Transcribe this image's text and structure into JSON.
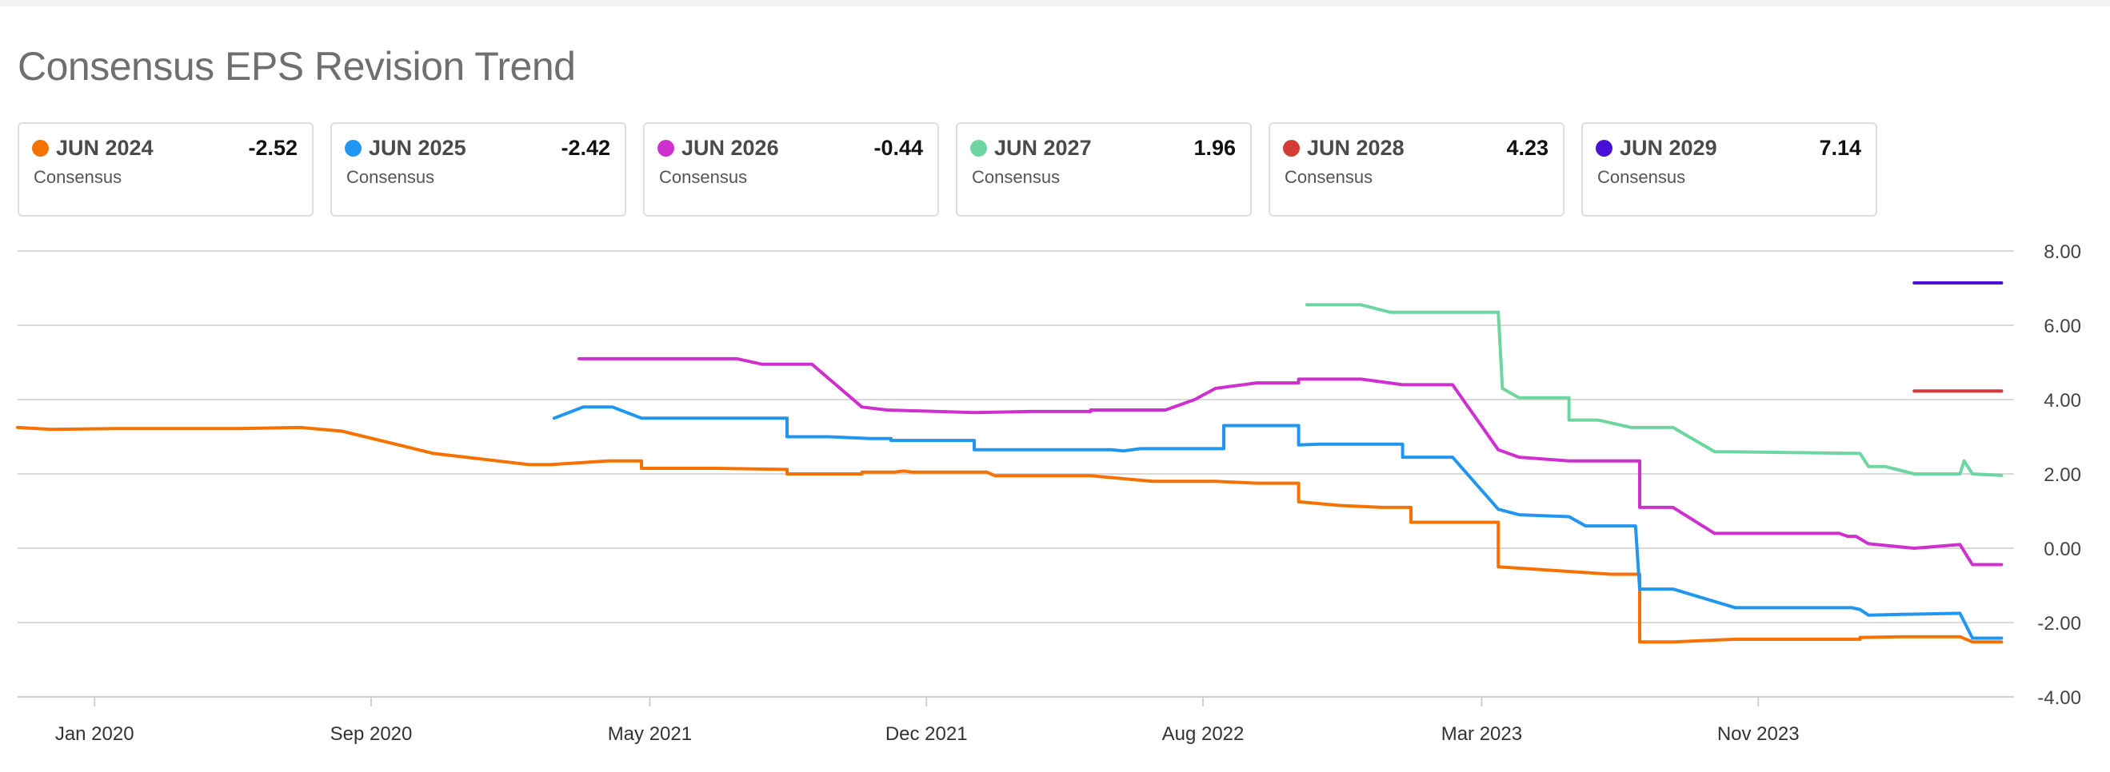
{
  "header": {
    "title": "Consensus EPS Revision Trend"
  },
  "cards": [
    {
      "name": "JUN 2024",
      "value": "-2.52",
      "label": "Consensus",
      "color": "#f57200"
    },
    {
      "name": "JUN 2025",
      "value": "-2.42",
      "label": "Consensus",
      "color": "#2196f0"
    },
    {
      "name": "JUN 2026",
      "value": "-0.44",
      "label": "Consensus",
      "color": "#cf2fcf"
    },
    {
      "name": "JUN 2027",
      "value": "1.96",
      "label": "Consensus",
      "color": "#6dd6a0"
    },
    {
      "name": "JUN 2028",
      "value": "4.23",
      "label": "Consensus",
      "color": "#d33b34"
    },
    {
      "name": "JUN 2029",
      "value": "7.14",
      "label": "Consensus",
      "color": "#4a10d8"
    }
  ],
  "chart_data": {
    "type": "line",
    "title": "Consensus EPS Revision Trend",
    "xlabel": "",
    "ylabel": "",
    "x_unit": "years (decimal)",
    "xlim": [
      2019.77,
      2024.57
    ],
    "ylim": [
      -4,
      8
    ],
    "yticks": [
      8,
      6,
      4,
      2,
      0,
      -2,
      -4
    ],
    "ytick_labels": [
      "8.00",
      "6.00",
      "4.00",
      "2.00",
      "0.00",
      "-2.00",
      "-4.00"
    ],
    "xticks": [
      {
        "value": 2019.955,
        "label": "Jan 2020"
      },
      {
        "value": 2020.62,
        "label": "Sep 2020"
      },
      {
        "value": 2021.29,
        "label": "May 2021"
      },
      {
        "value": 2021.955,
        "label": "Dec 2021"
      },
      {
        "value": 2022.62,
        "label": "Aug 2022"
      },
      {
        "value": 2023.29,
        "label": "Mar 2023"
      },
      {
        "value": 2023.955,
        "label": "Nov 2023"
      }
    ],
    "grid": true,
    "series": [
      {
        "name": "JUN 2024",
        "color": "#f57200",
        "points": [
          [
            2019.77,
            3.25
          ],
          [
            2019.85,
            3.2
          ],
          [
            2020.0,
            3.22
          ],
          [
            2020.3,
            3.22
          ],
          [
            2020.45,
            3.25
          ],
          [
            2020.55,
            3.15
          ],
          [
            2020.77,
            2.55
          ],
          [
            2021.0,
            2.25
          ],
          [
            2021.05,
            2.25
          ],
          [
            2021.19,
            2.35
          ],
          [
            2021.27,
            2.35
          ],
          [
            2021.27,
            2.15
          ],
          [
            2021.45,
            2.15
          ],
          [
            2021.62,
            2.12
          ],
          [
            2021.62,
            2.0
          ],
          [
            2021.8,
            2.0
          ],
          [
            2021.8,
            2.05
          ],
          [
            2021.88,
            2.05
          ],
          [
            2021.9,
            2.08
          ],
          [
            2021.92,
            2.05
          ],
          [
            2022.1,
            2.05
          ],
          [
            2022.12,
            1.95
          ],
          [
            2022.35,
            1.95
          ],
          [
            2022.4,
            1.9
          ],
          [
            2022.45,
            1.85
          ],
          [
            2022.5,
            1.8
          ],
          [
            2022.62,
            1.8
          ],
          [
            2022.65,
            1.8
          ],
          [
            2022.75,
            1.75
          ],
          [
            2022.85,
            1.75
          ],
          [
            2022.85,
            1.25
          ],
          [
            2022.95,
            1.15
          ],
          [
            2023.05,
            1.1
          ],
          [
            2023.12,
            1.1
          ],
          [
            2023.12,
            0.7
          ],
          [
            2023.33,
            0.7
          ],
          [
            2023.33,
            -0.5
          ],
          [
            2023.4,
            -0.55
          ],
          [
            2023.6,
            -0.7
          ],
          [
            2023.67,
            -0.7
          ],
          [
            2023.67,
            -2.52
          ],
          [
            2023.75,
            -2.52
          ],
          [
            2023.9,
            -2.45
          ],
          [
            2024.2,
            -2.45
          ],
          [
            2024.2,
            -2.4
          ],
          [
            2024.3,
            -2.38
          ],
          [
            2024.44,
            -2.38
          ],
          [
            2024.47,
            -2.52
          ],
          [
            2024.54,
            -2.52
          ]
        ]
      },
      {
        "name": "JUN 2025",
        "color": "#2196f0",
        "points": [
          [
            2021.06,
            3.5
          ],
          [
            2021.13,
            3.8
          ],
          [
            2021.2,
            3.8
          ],
          [
            2021.27,
            3.5
          ],
          [
            2021.62,
            3.5
          ],
          [
            2021.62,
            3.0
          ],
          [
            2021.72,
            3.0
          ],
          [
            2021.82,
            2.95
          ],
          [
            2021.87,
            2.95
          ],
          [
            2021.87,
            2.9
          ],
          [
            2022.07,
            2.9
          ],
          [
            2022.07,
            2.65
          ],
          [
            2022.4,
            2.65
          ],
          [
            2022.43,
            2.62
          ],
          [
            2022.47,
            2.68
          ],
          [
            2022.67,
            2.68
          ],
          [
            2022.67,
            3.3
          ],
          [
            2022.85,
            3.3
          ],
          [
            2022.85,
            2.78
          ],
          [
            2022.9,
            2.8
          ],
          [
            2023.1,
            2.8
          ],
          [
            2023.1,
            2.45
          ],
          [
            2023.22,
            2.45
          ],
          [
            2023.33,
            1.05
          ],
          [
            2023.38,
            0.9
          ],
          [
            2023.5,
            0.85
          ],
          [
            2023.54,
            0.6
          ],
          [
            2023.66,
            0.6
          ],
          [
            2023.67,
            -1.1
          ],
          [
            2023.75,
            -1.1
          ],
          [
            2023.9,
            -1.6
          ],
          [
            2024.18,
            -1.6
          ],
          [
            2024.2,
            -1.65
          ],
          [
            2024.22,
            -1.8
          ],
          [
            2024.3,
            -1.78
          ],
          [
            2024.44,
            -1.75
          ],
          [
            2024.47,
            -2.42
          ],
          [
            2024.54,
            -2.42
          ]
        ]
      },
      {
        "name": "JUN 2026",
        "color": "#cf2fcf",
        "points": [
          [
            2021.12,
            5.1
          ],
          [
            2021.5,
            5.1
          ],
          [
            2021.56,
            4.95
          ],
          [
            2021.68,
            4.95
          ],
          [
            2021.8,
            3.8
          ],
          [
            2021.86,
            3.72
          ],
          [
            2022.07,
            3.65
          ],
          [
            2022.2,
            3.68
          ],
          [
            2022.35,
            3.68
          ],
          [
            2022.35,
            3.72
          ],
          [
            2022.53,
            3.72
          ],
          [
            2022.6,
            4.0
          ],
          [
            2022.65,
            4.3
          ],
          [
            2022.75,
            4.45
          ],
          [
            2022.85,
            4.45
          ],
          [
            2022.85,
            4.55
          ],
          [
            2023.0,
            4.55
          ],
          [
            2023.1,
            4.4
          ],
          [
            2023.22,
            4.4
          ],
          [
            2023.33,
            2.65
          ],
          [
            2023.38,
            2.45
          ],
          [
            2023.5,
            2.35
          ],
          [
            2023.67,
            2.35
          ],
          [
            2023.67,
            1.1
          ],
          [
            2023.75,
            1.1
          ],
          [
            2023.85,
            0.4
          ],
          [
            2024.15,
            0.4
          ],
          [
            2024.17,
            0.32
          ],
          [
            2024.19,
            0.32
          ],
          [
            2024.22,
            0.12
          ],
          [
            2024.33,
            0.0
          ],
          [
            2024.44,
            0.1
          ],
          [
            2024.47,
            -0.44
          ],
          [
            2024.54,
            -0.44
          ]
        ]
      },
      {
        "name": "JUN 2027",
        "color": "#6dd6a0",
        "points": [
          [
            2022.87,
            6.55
          ],
          [
            2023.0,
            6.55
          ],
          [
            2023.07,
            6.35
          ],
          [
            2023.33,
            6.35
          ],
          [
            2023.34,
            4.3
          ],
          [
            2023.38,
            4.05
          ],
          [
            2023.5,
            4.05
          ],
          [
            2023.5,
            3.45
          ],
          [
            2023.57,
            3.45
          ],
          [
            2023.65,
            3.25
          ],
          [
            2023.75,
            3.25
          ],
          [
            2023.85,
            2.6
          ],
          [
            2024.2,
            2.55
          ],
          [
            2024.22,
            2.2
          ],
          [
            2024.26,
            2.2
          ],
          [
            2024.33,
            2.0
          ],
          [
            2024.44,
            2.0
          ],
          [
            2024.45,
            2.35
          ],
          [
            2024.47,
            2.0
          ],
          [
            2024.54,
            1.96
          ]
        ]
      },
      {
        "name": "JUN 2028",
        "color": "#d33b34",
        "points": [
          [
            2024.33,
            4.23
          ],
          [
            2024.54,
            4.23
          ]
        ]
      },
      {
        "name": "JUN 2029",
        "color": "#4a10d8",
        "points": [
          [
            2024.33,
            7.14
          ],
          [
            2024.54,
            7.14
          ]
        ]
      }
    ]
  }
}
